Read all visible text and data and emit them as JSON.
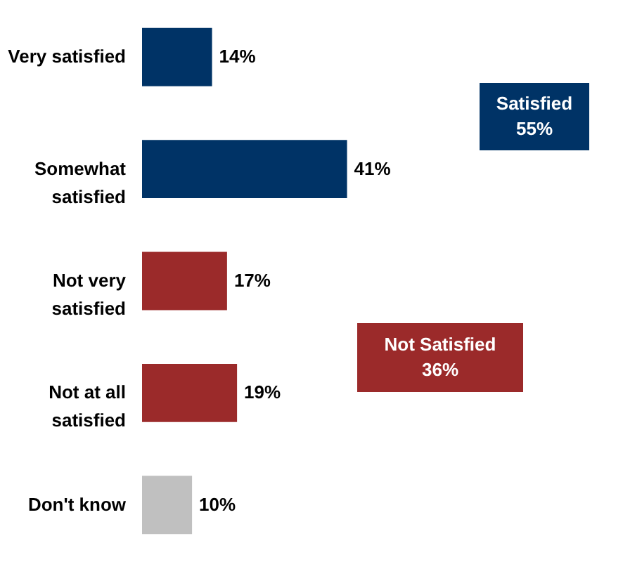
{
  "chart_data": {
    "type": "bar",
    "orientation": "horizontal",
    "categories": [
      "Very satisfied",
      "Somewhat satisfied",
      "Not very satisfied",
      "Not at all satisfied",
      "Don't know"
    ],
    "values": [
      14,
      41,
      17,
      19,
      10
    ],
    "colors": [
      "#003366",
      "#003366",
      "#9b2a2a",
      "#9b2a2a",
      "#c0c0c0"
    ],
    "value_labels": [
      "14%",
      "41%",
      "17%",
      "19%",
      "10%"
    ],
    "annotations": [
      "Satisfied 55%",
      "Not Satisfied 36%"
    ],
    "grid": false
  }
}
